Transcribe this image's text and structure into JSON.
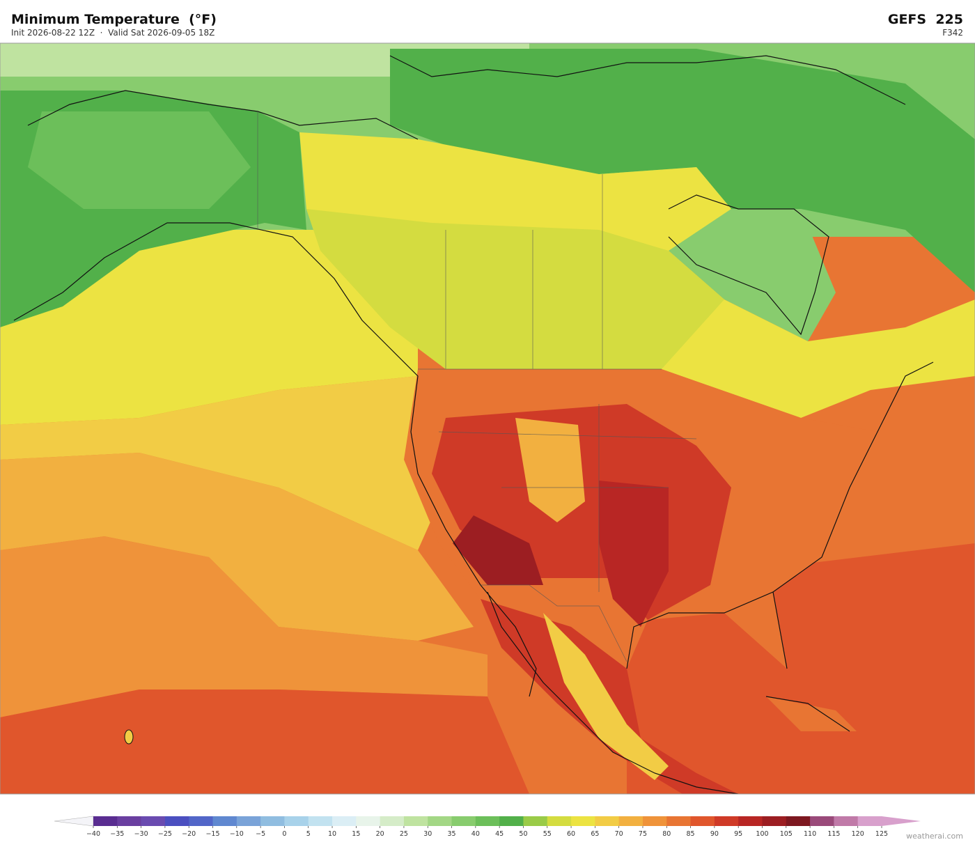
{
  "header": {
    "title": "Minimum Temperature  (°F)",
    "subtitle": "Init 2026-08-22 12Z  ·  Valid Sat 2026-09-05 18Z",
    "model": "GEFS  225",
    "forecast_hour": "F342"
  },
  "colorbar": {
    "ticks": [
      {
        "value": -40,
        "label": "−40"
      },
      {
        "value": -35,
        "label": "−35"
      },
      {
        "value": -30,
        "label": "−30"
      },
      {
        "value": -25,
        "label": "−25"
      },
      {
        "value": -20,
        "label": "−20"
      },
      {
        "value": -15,
        "label": "−15"
      },
      {
        "value": -10,
        "label": "−10"
      },
      {
        "value": -5,
        "label": "−5"
      },
      0,
      5,
      10,
      15,
      20,
      25,
      30,
      35,
      40,
      45,
      50,
      55,
      60,
      65,
      70,
      75,
      80,
      85,
      90,
      95,
      100,
      105,
      110,
      115,
      120,
      125
    ],
    "colors": [
      "#5a2d91",
      "#6a3fa0",
      "#6a4bb0",
      "#4b4fc0",
      "#5266c8",
      "#6088d0",
      "#7aa3d8",
      "#90bde0",
      "#a8d2ea",
      "#c2e2f0",
      "#dbeef5",
      "#e8f4ea",
      "#d5ecc8",
      "#bfe3a0",
      "#a3d785",
      "#88cc6e",
      "#6cbf5a",
      "#52b04a",
      "#9acb48",
      "#d4dc40",
      "#ece342",
      "#f2cc45",
      "#f2b040",
      "#ef933a",
      "#e87533",
      "#e0562c",
      "#cf3a27",
      "#b82624",
      "#9c1e22",
      "#7d1820",
      "#9a4a7a",
      "#c07aa8",
      "#d8a0cc"
    ],
    "under_color": "#f4f4f8",
    "over_color": "#d8a0cc"
  },
  "watermark": "weatherai.com"
}
